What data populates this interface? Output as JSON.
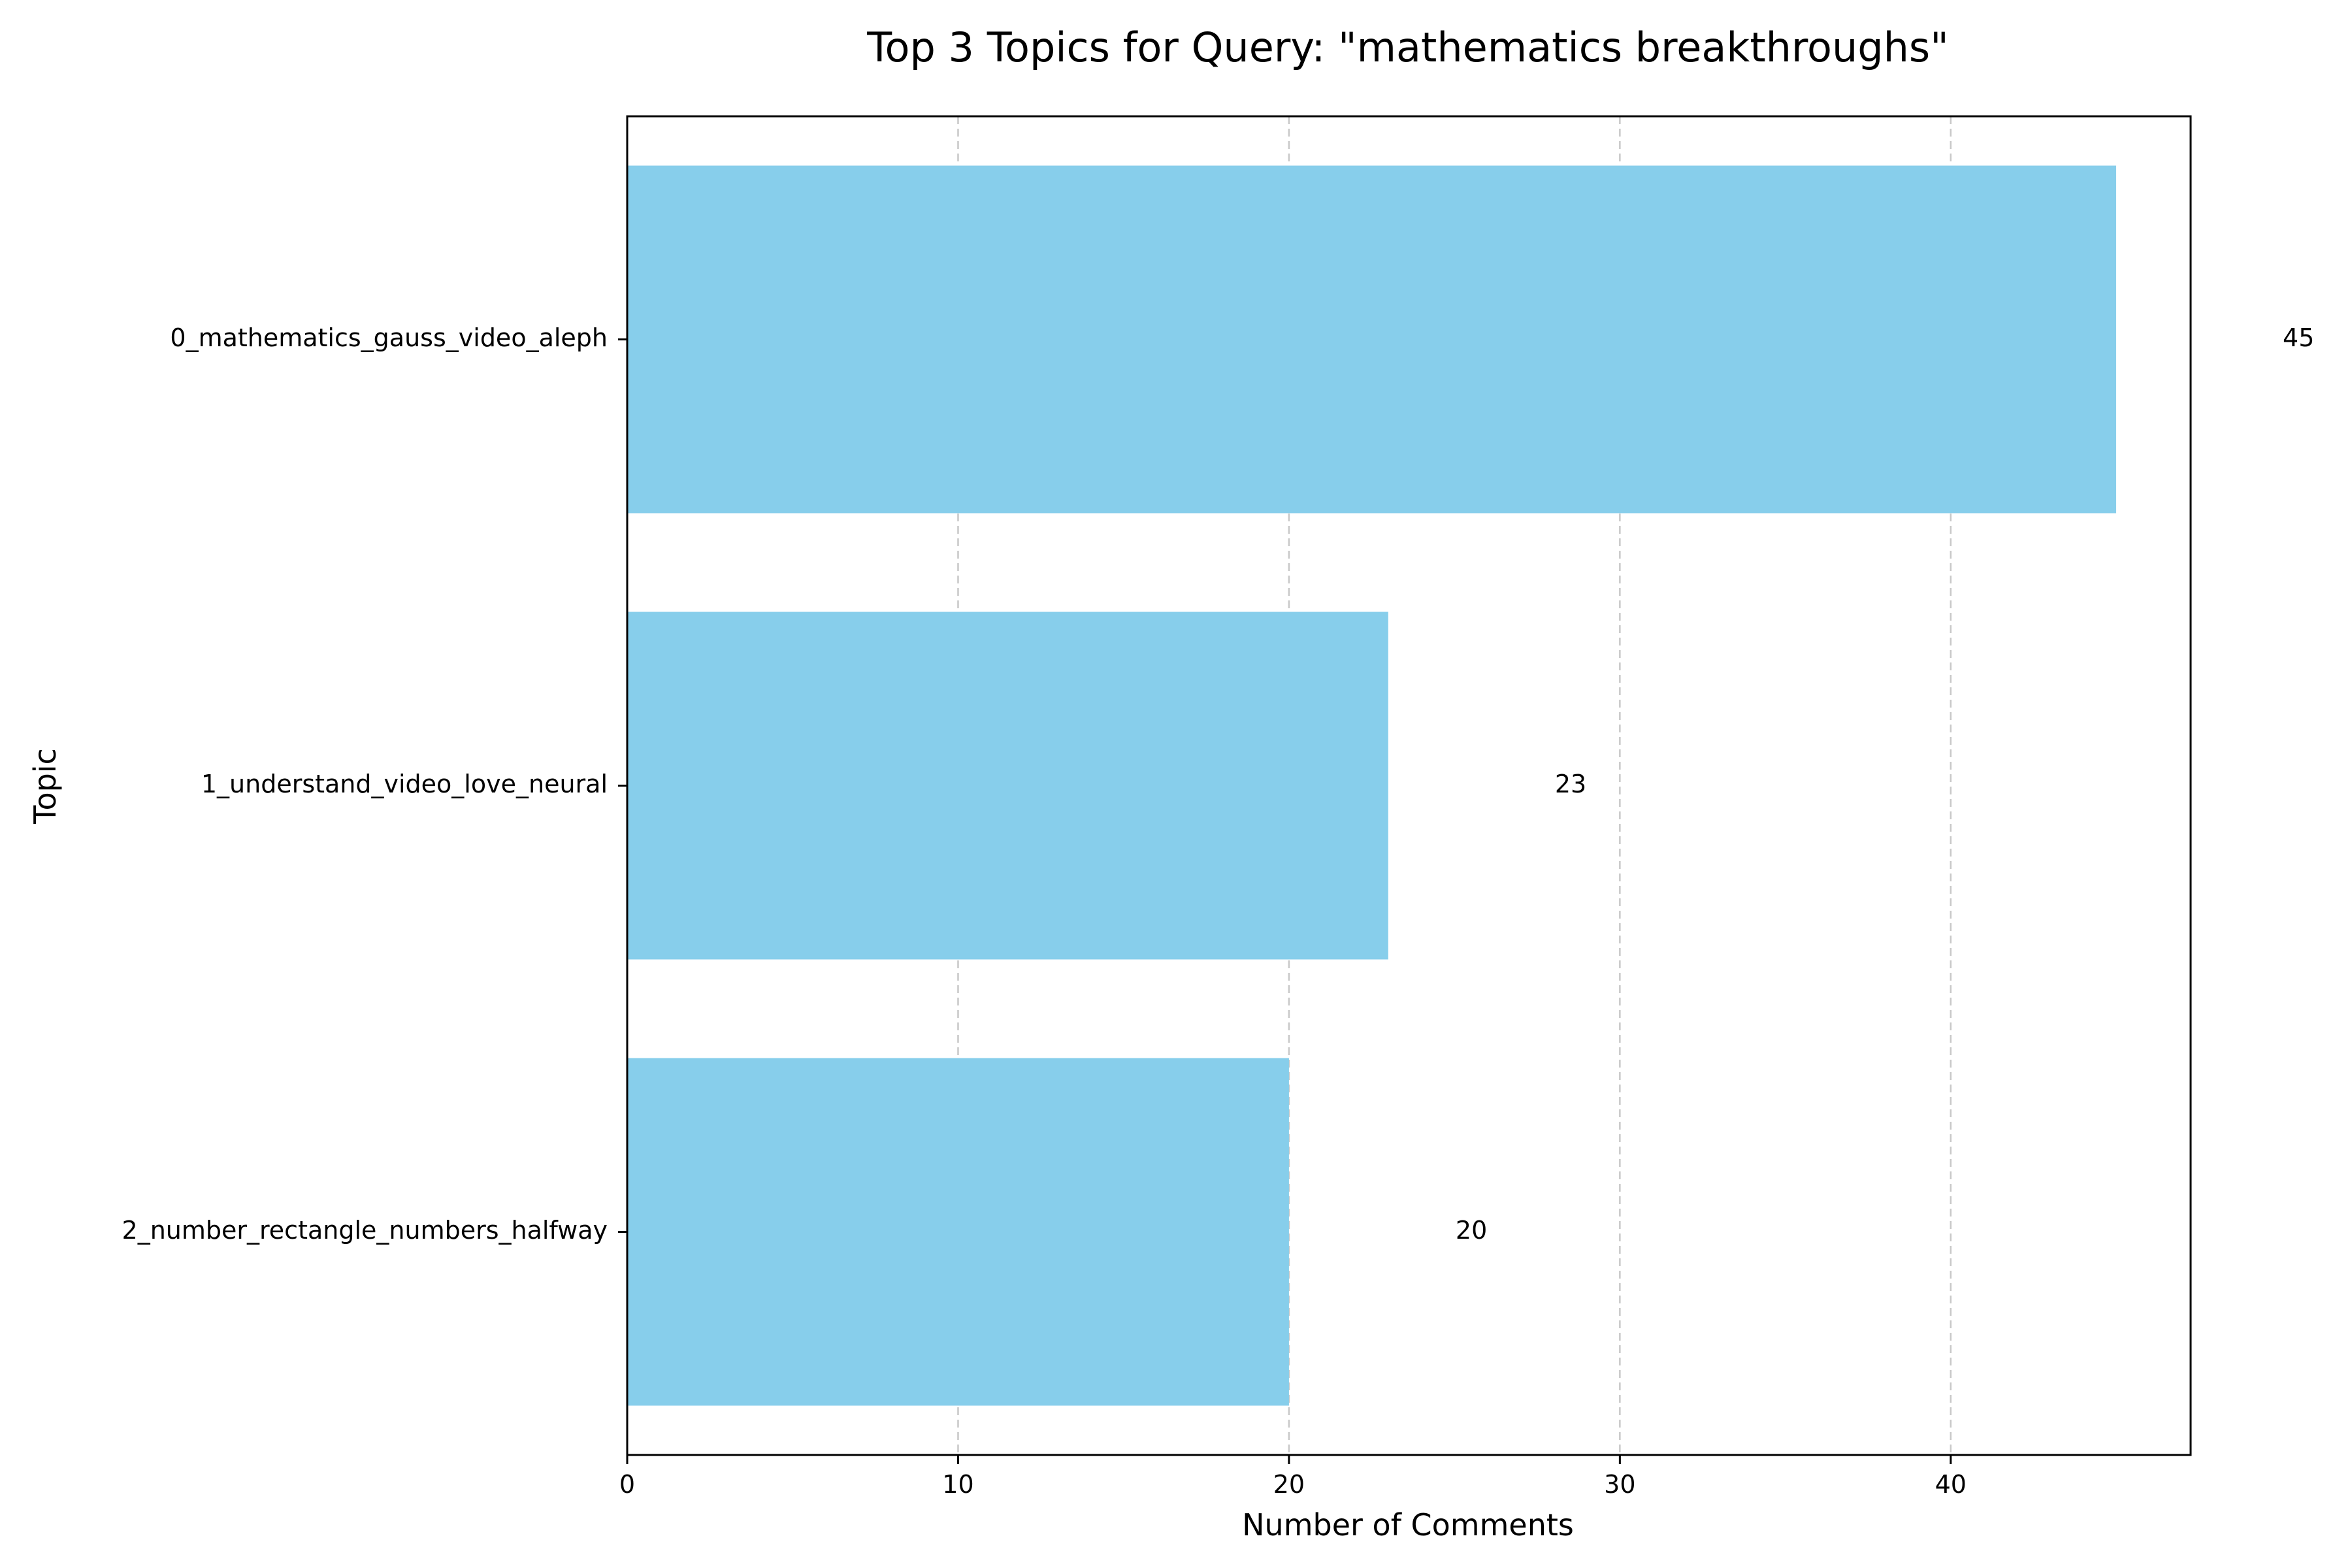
{
  "chart_data": {
    "type": "bar",
    "orientation": "horizontal",
    "title": "Top 3 Topics for Query: \"mathematics breakthroughs\"",
    "xlabel": "Number of Comments",
    "ylabel": "Topic",
    "categories": [
      "0_mathematics_gauss_video_aleph",
      "1_understand_video_love_neural",
      "2_number_rectangle_numbers_halfway"
    ],
    "values": [
      45,
      23,
      20
    ],
    "data_labels": [
      "45",
      "23",
      "20"
    ],
    "xlim": [
      0,
      47.25
    ],
    "xticks": [
      0,
      10,
      20,
      30,
      40
    ],
    "xtick_labels": [
      "0",
      "10",
      "20",
      "30",
      "40"
    ],
    "grid": "x-axis dashed",
    "bar_color": "#87ceeb",
    "grid_color": "#c8c8c8"
  }
}
